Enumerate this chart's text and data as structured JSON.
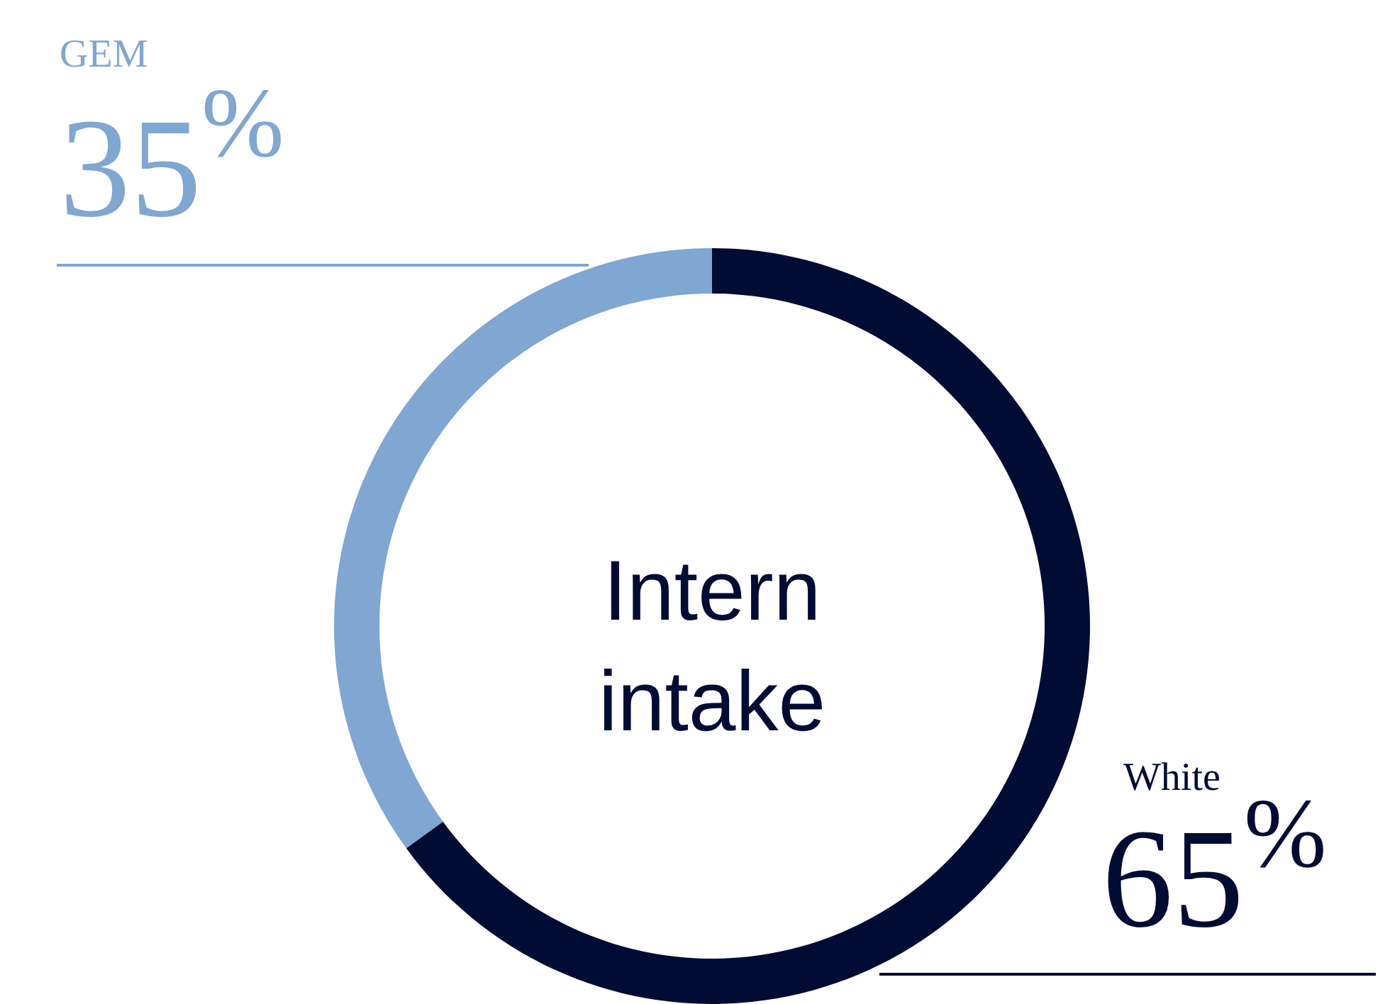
{
  "chart_data": {
    "type": "donut",
    "title": "Intern intake",
    "categories": [
      "White",
      "GEM"
    ],
    "values": [
      65,
      35
    ],
    "colors": [
      "#000c33",
      "#80a6d2"
    ],
    "value_labels": [
      "65$^{%}$",
      "35$^{%}$"
    ],
    "legend": false
  }
}
